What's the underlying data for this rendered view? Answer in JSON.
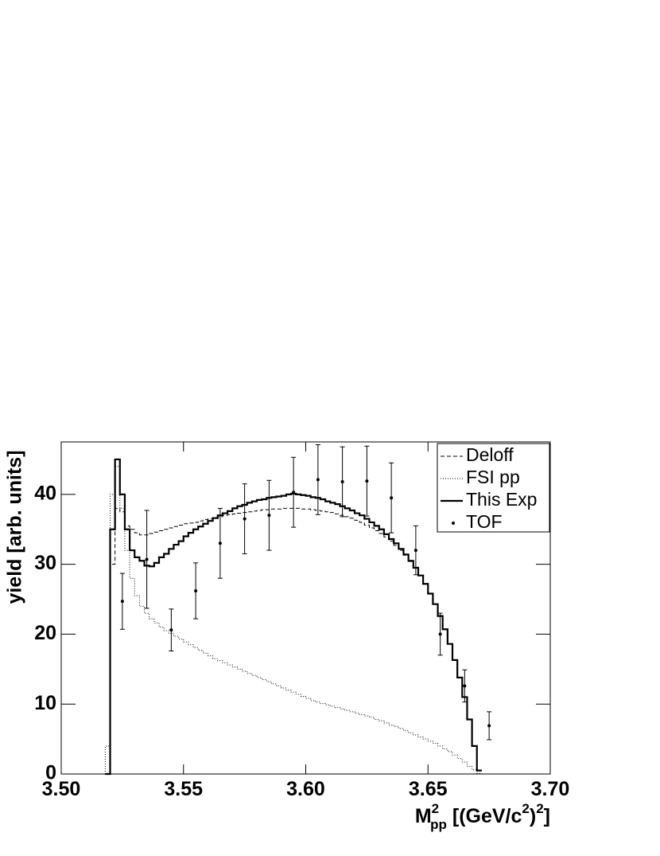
{
  "chart_data": {
    "type": "histogram",
    "xlabel_parts": [
      "M",
      "2",
      "pp",
      " [(GeV/c",
      "2",
      ")",
      "2",
      "]"
    ],
    "ylabel": "yield [arb. units]",
    "xlim": [
      3.5,
      3.7
    ],
    "ylim": [
      0,
      47.5
    ],
    "xticks": [
      {
        "value": 3.5,
        "label": "3.50"
      },
      3.55,
      {
        "value": 3.6,
        "label": "3.60"
      },
      3.65,
      {
        "value": 3.7,
        "label": "3.70"
      }
    ],
    "yticks": [
      0,
      10,
      20,
      30,
      40
    ],
    "legend": "top-right",
    "bins": [
      3.518,
      3.52,
      3.522,
      3.524,
      3.526,
      3.528,
      3.53,
      3.532,
      3.534,
      3.536,
      3.538,
      3.54,
      3.542,
      3.544,
      3.546,
      3.548,
      3.55,
      3.552,
      3.554,
      3.556,
      3.558,
      3.56,
      3.562,
      3.564,
      3.566,
      3.568,
      3.57,
      3.572,
      3.574,
      3.576,
      3.578,
      3.58,
      3.582,
      3.584,
      3.586,
      3.588,
      3.59,
      3.592,
      3.594,
      3.596,
      3.598,
      3.6,
      3.602,
      3.604,
      3.606,
      3.608,
      3.61,
      3.612,
      3.614,
      3.616,
      3.618,
      3.62,
      3.622,
      3.624,
      3.626,
      3.628,
      3.63,
      3.632,
      3.634,
      3.636,
      3.638,
      3.64,
      3.642,
      3.644,
      3.646,
      3.648,
      3.65,
      3.652,
      3.654,
      3.656,
      3.658,
      3.66,
      3.662,
      3.664,
      3.666,
      3.668,
      3.67,
      3.672
    ],
    "series": [
      {
        "name": "Deloff",
        "style": "dashed",
        "color": "#000000",
        "values": [
          0,
          30,
          38,
          37.5,
          35.5,
          35,
          34.5,
          34.2,
          34.2,
          34.4,
          34.6,
          34.8,
          35,
          35.2,
          35.4,
          35.6,
          35.8,
          35.9,
          36,
          36.2,
          36.4,
          36.5,
          36.7,
          36.8,
          37,
          37.1,
          37.2,
          37.3,
          37.4,
          37.5,
          37.6,
          37.7,
          37.8,
          37.8,
          37.9,
          37.9,
          38,
          38,
          38,
          38,
          37.9,
          37.9,
          37.8,
          37.7,
          37.6,
          37.5,
          37.4,
          37.2,
          37,
          36.8,
          36.6,
          36.3,
          36,
          35.6,
          35.2,
          34.8,
          34.4,
          33.9,
          33.3,
          32.7,
          32,
          31.3,
          30.4,
          29.5,
          28.4,
          27.2,
          25.8,
          24.3,
          22.6,
          20.7,
          18.6,
          16.3,
          13.8,
          11,
          7.8,
          4,
          0.5
        ]
      },
      {
        "name": "FSI pp",
        "style": "dotted",
        "color": "#000000",
        "values": [
          4,
          40,
          44,
          38,
          32,
          28,
          25.5,
          24,
          23,
          22.2,
          21.6,
          21,
          20.5,
          20.1,
          19.7,
          19.3,
          18.9,
          18.5,
          18.1,
          17.7,
          17.3,
          16.9,
          16.5,
          16.2,
          15.9,
          15.6,
          15.3,
          15,
          14.7,
          14.4,
          14.1,
          13.8,
          13.5,
          13.2,
          12.9,
          12.6,
          12.3,
          12,
          11.7,
          11.4,
          11.1,
          10.8,
          10.5,
          10.3,
          10.1,
          9.9,
          9.7,
          9.5,
          9.3,
          9.1,
          8.9,
          8.7,
          8.5,
          8.3,
          8.1,
          7.8,
          7.6,
          7.3,
          7,
          6.8,
          6.5,
          6.2,
          5.9,
          5.6,
          5.3,
          5,
          4.7,
          4.4,
          4,
          3.6,
          3.2,
          2.7,
          2.2,
          1.7,
          1.1,
          0.6,
          0.1
        ]
      },
      {
        "name": "This Exp",
        "style": "solid",
        "color": "#000000",
        "values": [
          0,
          35,
          45,
          40,
          35,
          32,
          31,
          30.5,
          29.8,
          29.7,
          30.2,
          31,
          31.5,
          32.2,
          32.8,
          33.3,
          34,
          34.5,
          35,
          35.4,
          35.8,
          36.2,
          36.6,
          37,
          37.3,
          37.6,
          38,
          38.3,
          38.5,
          38.8,
          39,
          39.2,
          39.3,
          39.5,
          39.6,
          39.7,
          39.8,
          40,
          40.1,
          40,
          39.9,
          39.8,
          39.6,
          39.5,
          39.3,
          39,
          38.8,
          38.6,
          38.3,
          38,
          37.7,
          37.3,
          37,
          36.5,
          36,
          35.5,
          35,
          34.3,
          33.6,
          33,
          32.2,
          31.4,
          30.5,
          29.5,
          28.4,
          27.2,
          25.8,
          24.3,
          22.6,
          20.7,
          18.6,
          16.3,
          13.8,
          11,
          7.8,
          4,
          0.5
        ]
      },
      {
        "name": "TOF",
        "style": "points",
        "color": "#000000",
        "x": [
          3.525,
          3.535,
          3.545,
          3.555,
          3.565,
          3.575,
          3.585,
          3.595,
          3.605,
          3.615,
          3.625,
          3.635,
          3.645,
          3.655,
          3.665,
          3.675
        ],
        "values": [
          24.7,
          30.7,
          20.6,
          26.2,
          33,
          36.5,
          37,
          40.3,
          42.1,
          41.8,
          41.9,
          39.5,
          32,
          20,
          12.6,
          6.9
        ],
        "errors": [
          4,
          7,
          3,
          4,
          5,
          5,
          5,
          5,
          5,
          5,
          5,
          5,
          3.5,
          3,
          2.3,
          2
        ]
      }
    ]
  }
}
